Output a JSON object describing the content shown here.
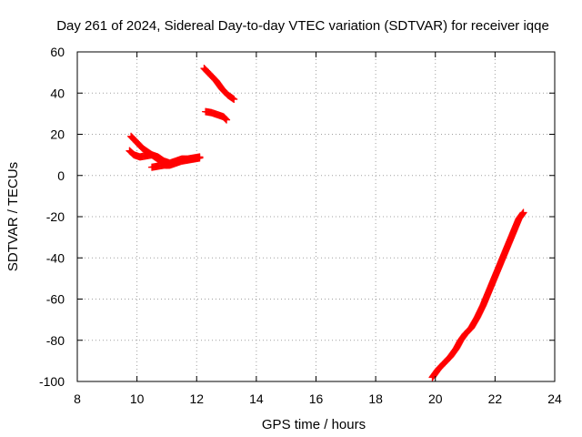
{
  "chart_data": {
    "type": "scatter",
    "title": "Day 261 of 2024, Sidereal Day-to-day VTEC variation (SDTVAR) for receiver iqqe",
    "xlabel": "GPS time / hours",
    "ylabel": "SDTVAR / TECUs",
    "xlim": [
      8,
      24
    ],
    "ylim": [
      -100,
      60
    ],
    "xticks": [
      8,
      10,
      12,
      14,
      16,
      18,
      20,
      22,
      24
    ],
    "yticks": [
      -100,
      -80,
      -60,
      -40,
      -20,
      0,
      20,
      40,
      60
    ],
    "grid": true,
    "marker": "plus",
    "color": "#ff0000",
    "series": [
      {
        "segments": [
          [
            [
              9.8,
              19
            ],
            [
              10.0,
              16
            ],
            [
              10.2,
              13
            ],
            [
              10.4,
              11
            ],
            [
              10.6,
              9
            ],
            [
              10.8,
              7
            ],
            [
              11.0,
              5
            ]
          ],
          [
            [
              9.75,
              12
            ],
            [
              9.9,
              10
            ],
            [
              10.1,
              9
            ],
            [
              10.3,
              9.5
            ],
            [
              10.5,
              10
            ],
            [
              10.7,
              9
            ],
            [
              10.9,
              7
            ],
            [
              11.1,
              6
            ],
            [
              11.3,
              7
            ],
            [
              11.5,
              8
            ],
            [
              11.7,
              8
            ],
            [
              11.9,
              8.5
            ],
            [
              12.1,
              9
            ]
          ],
          [
            [
              10.5,
              4
            ],
            [
              10.7,
              4.5
            ],
            [
              10.9,
              5
            ],
            [
              11.1,
              5
            ],
            [
              11.3,
              6
            ],
            [
              11.5,
              7
            ],
            [
              11.7,
              7.5
            ],
            [
              11.9,
              8
            ],
            [
              12.1,
              8.5
            ]
          ],
          [
            [
              12.25,
              52
            ],
            [
              12.45,
              49
            ],
            [
              12.65,
              46
            ],
            [
              12.85,
              42
            ],
            [
              13.05,
              39
            ],
            [
              13.25,
              37
            ]
          ],
          [
            [
              12.3,
              31
            ],
            [
              12.5,
              30.5
            ],
            [
              12.7,
              29.5
            ],
            [
              12.9,
              28.5
            ],
            [
              13.0,
              27
            ]
          ],
          [
            [
              19.9,
              -98
            ],
            [
              20.1,
              -94
            ],
            [
              20.3,
              -91
            ],
            [
              20.5,
              -88
            ],
            [
              20.7,
              -84
            ],
            [
              20.85,
              -80
            ],
            [
              21.0,
              -77
            ],
            [
              21.2,
              -74
            ],
            [
              21.4,
              -69
            ],
            [
              21.6,
              -63
            ],
            [
              21.8,
              -56
            ],
            [
              22.0,
              -49
            ],
            [
              22.2,
              -42
            ],
            [
              22.4,
              -35
            ],
            [
              22.6,
              -28
            ],
            [
              22.8,
              -21
            ],
            [
              22.95,
              -18
            ]
          ]
        ]
      }
    ]
  }
}
